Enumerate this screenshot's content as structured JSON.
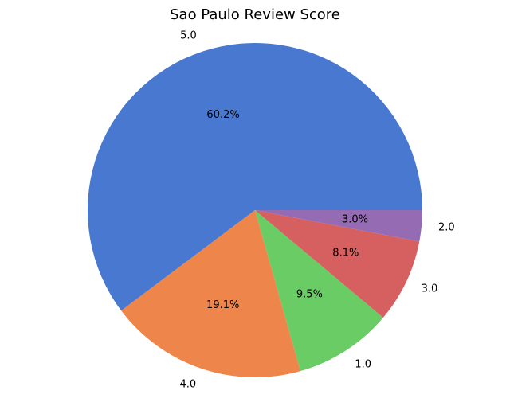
{
  "chart_data": {
    "type": "pie",
    "title": "Sao Paulo Review Score",
    "start_angle": 0,
    "direction": "counterclockwise",
    "slices": [
      {
        "label": "5.0",
        "value": 60.2,
        "pct_label": "60.2%",
        "color": "#4878d0"
      },
      {
        "label": "4.0",
        "value": 19.1,
        "pct_label": "19.1%",
        "color": "#ee854a"
      },
      {
        "label": "1.0",
        "value": 9.5,
        "pct_label": "9.5%",
        "color": "#6acc64"
      },
      {
        "label": "3.0",
        "value": 8.1,
        "pct_label": "8.1%",
        "color": "#d65f5f"
      },
      {
        "label": "2.0",
        "value": 3.0,
        "pct_label": "3.0%",
        "color": "#956cb4"
      }
    ]
  }
}
